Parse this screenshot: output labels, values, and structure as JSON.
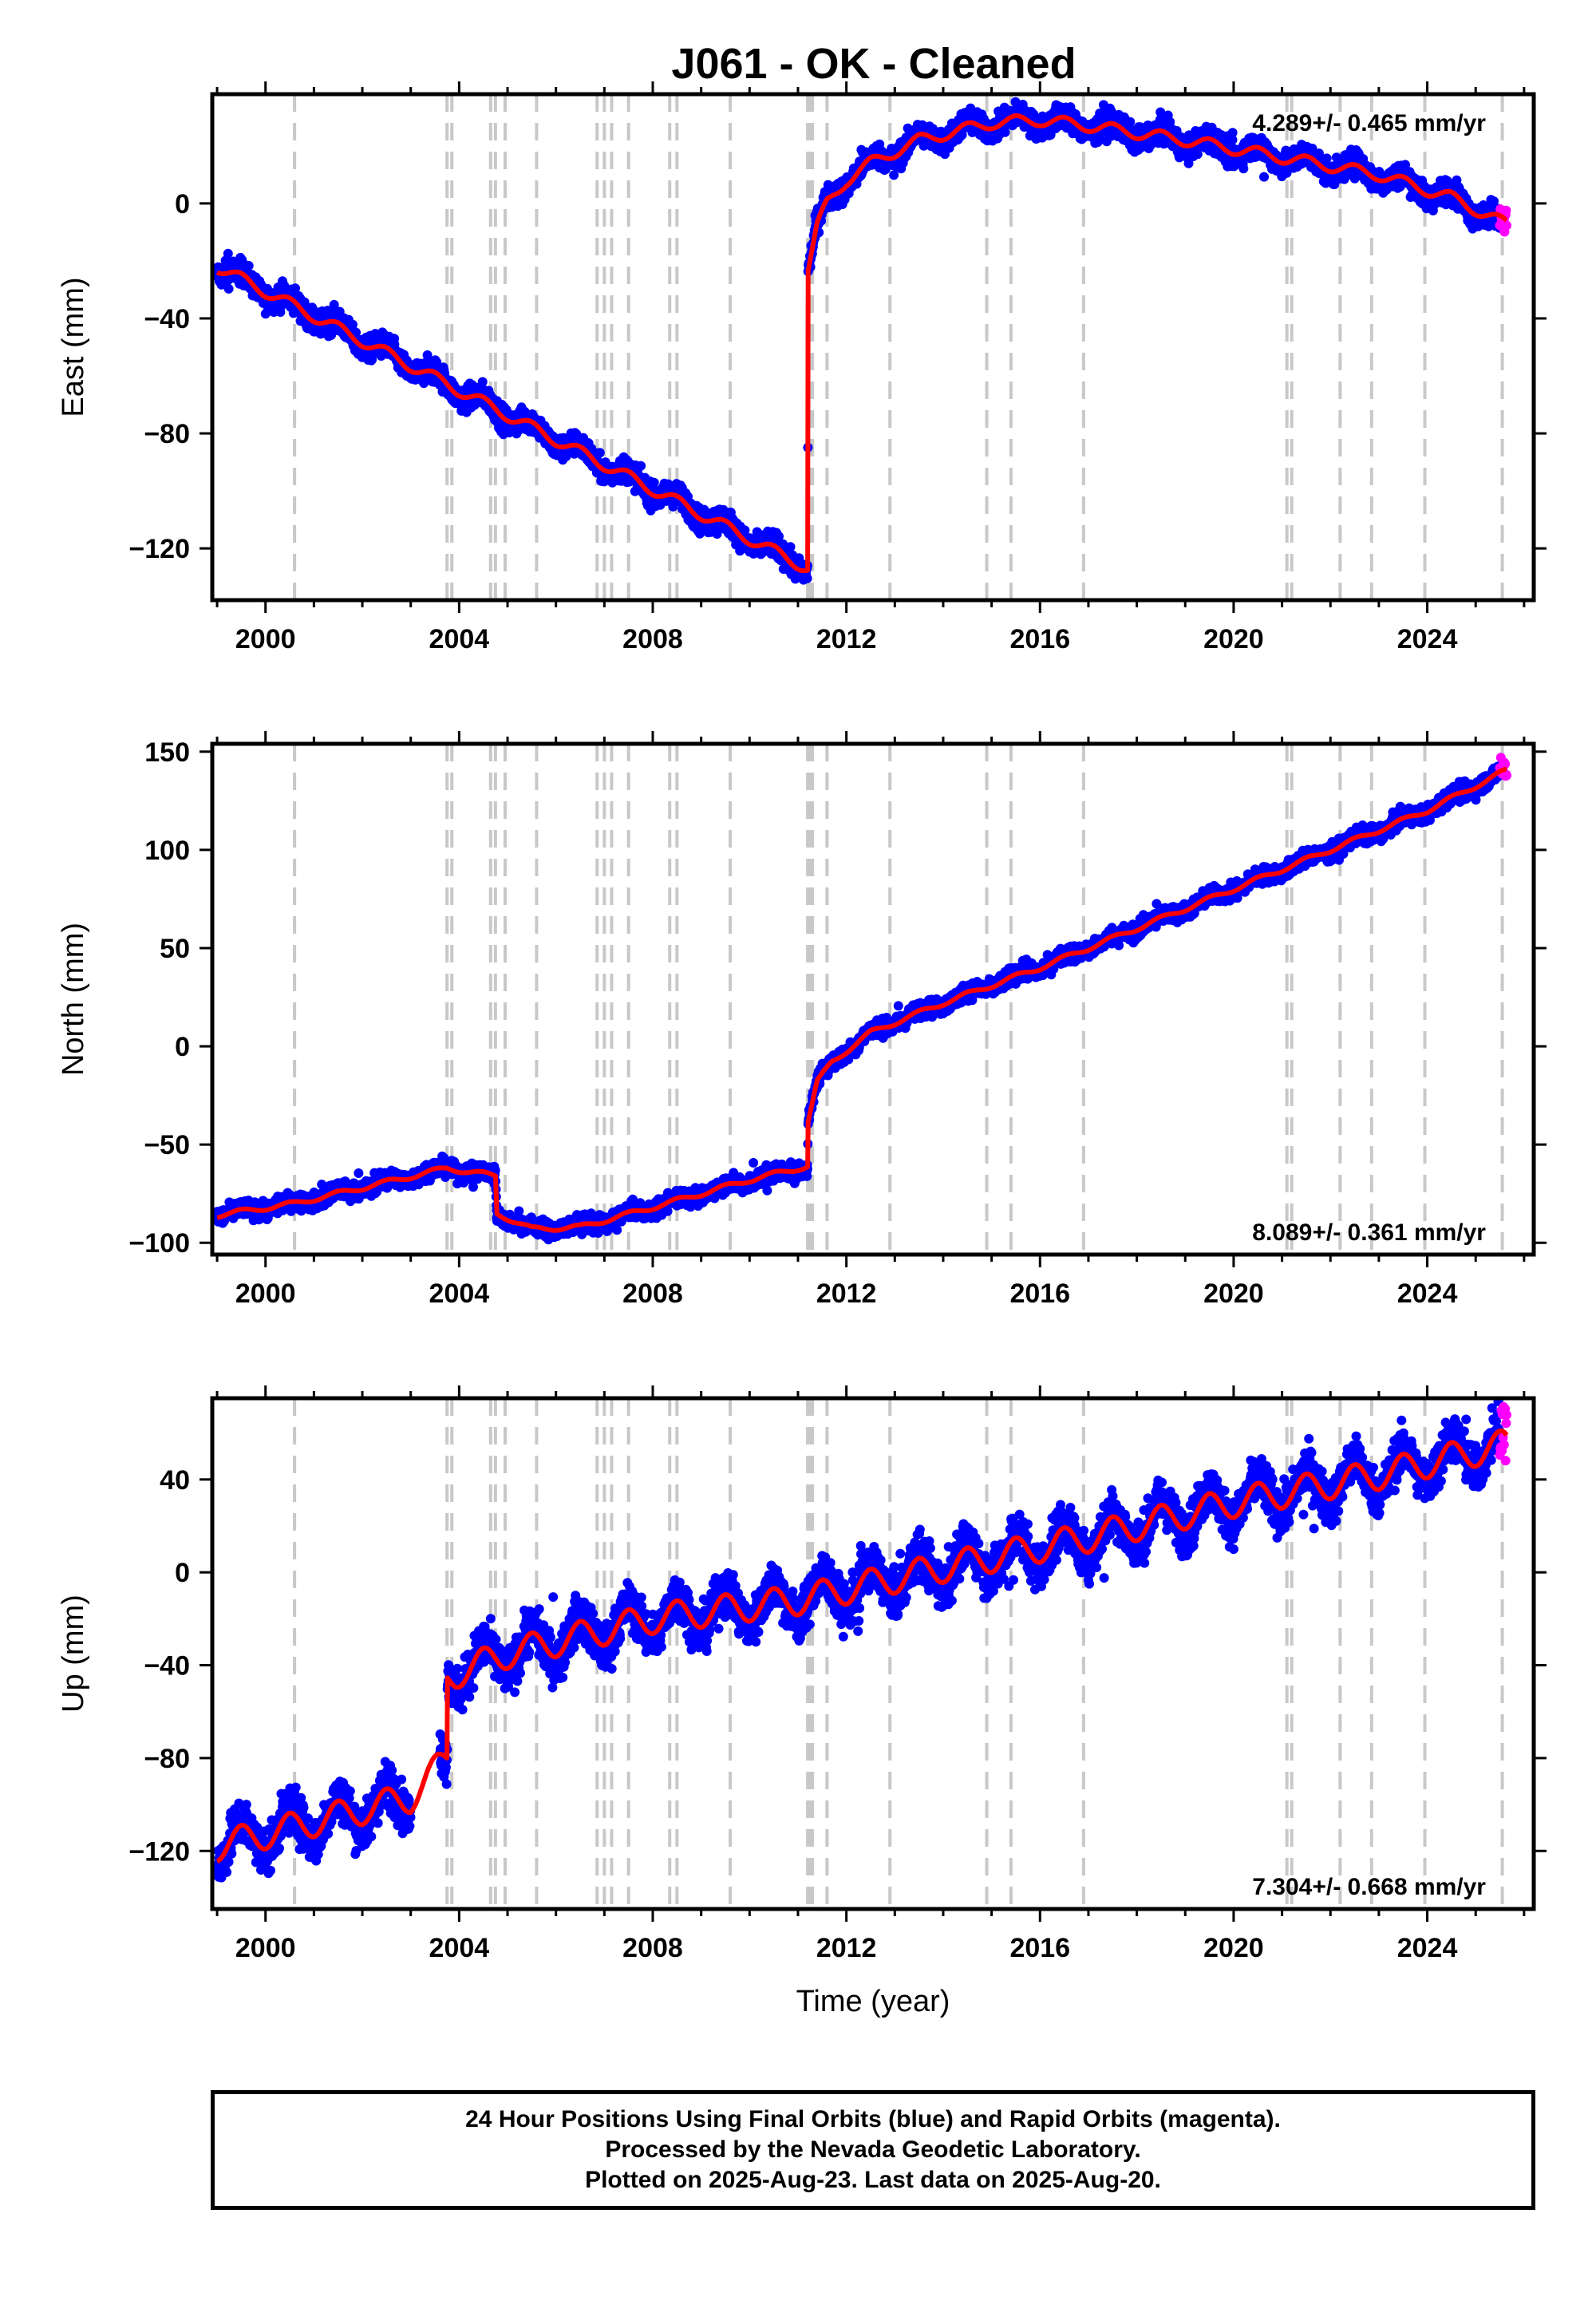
{
  "title": "J061  - OK - Cleaned",
  "colors": {
    "final_orbits": "#0000ff",
    "rapid_orbits": "#ff00ff",
    "model_fit": "#ff0000",
    "event_lines": "#c8c8c8",
    "frame": "#000000"
  },
  "footer": {
    "line1": "24 Hour Positions Using Final Orbits (blue) and Rapid Orbits (magenta).",
    "line2": "Processed by the Nevada Geodetic Laboratory.",
    "line3": "Plotted on 2025-Aug-23. Last data on 2025-Aug-20."
  },
  "chart_data": [
    {
      "type": "scatter",
      "title": "J061  - OK - Cleaned",
      "xlabel": "",
      "ylabel": "East (mm)",
      "xlim": [
        1998.9,
        2026.2
      ],
      "ylim": [
        -138,
        38
      ],
      "xticks": [
        2000,
        2004,
        2008,
        2012,
        2016,
        2020,
        2024
      ],
      "yticks": [
        -120,
        -80,
        -40,
        0
      ],
      "grid": false,
      "rate_annotation": "4.289+/- 0.465 mm/yr",
      "rate_position": "top-right",
      "event_lines": [
        2000.6,
        2003.75,
        2003.85,
        2004.65,
        2004.75,
        2004.95,
        2005.6,
        2006.85,
        2007.0,
        2007.15,
        2007.5,
        2008.35,
        2008.5,
        2009.6,
        2011.2,
        2011.25,
        2011.3,
        2011.6,
        2012.9,
        2014.9,
        2015.4,
        2016.9,
        2021.1,
        2021.2,
        2022.2,
        2022.85,
        2023.95,
        2025.55
      ],
      "series": [
        {
          "name": "Final Orbits",
          "color": "#0000ff",
          "trend": [
            [
              1999.0,
              -22
            ],
            [
              2011.2,
              -127
            ],
            [
              2011.21,
              -23
            ],
            [
              2011.4,
              -8
            ],
            [
              2011.6,
              0
            ],
            [
              2012.0,
              8
            ],
            [
              2012.5,
              14
            ],
            [
              2013.5,
              22
            ],
            [
              2015.0,
              28
            ],
            [
              2016.0,
              29
            ],
            [
              2017.0,
              27
            ],
            [
              2019.0,
              22
            ],
            [
              2021.0,
              16
            ],
            [
              2023.0,
              10
            ],
            [
              2024.5,
              2
            ],
            [
              2025.6,
              -7
            ]
          ],
          "seasonal_amplitude": 2.5,
          "scatter": 3
        },
        {
          "name": "Rapid Orbits",
          "color": "#ff00ff",
          "x_range": [
            2025.5,
            2025.64
          ],
          "y_range": [
            -10,
            -2
          ]
        },
        {
          "name": "Model",
          "color": "#ff0000",
          "type": "line"
        }
      ]
    },
    {
      "type": "scatter",
      "xlabel": "",
      "ylabel": "North (mm)",
      "xlim": [
        1998.9,
        2026.2
      ],
      "ylim": [
        -106,
        154
      ],
      "xticks": [
        2000,
        2004,
        2008,
        2012,
        2016,
        2020,
        2024
      ],
      "yticks": [
        -100,
        -50,
        0,
        50,
        100,
        150
      ],
      "grid": false,
      "rate_annotation": "8.089+/- 0.361 mm/yr",
      "rate_position": "bottom-right",
      "event_lines": [
        2000.6,
        2003.75,
        2003.85,
        2004.65,
        2004.75,
        2004.95,
        2005.6,
        2006.85,
        2007.0,
        2007.15,
        2007.5,
        2008.35,
        2008.5,
        2009.6,
        2011.2,
        2011.25,
        2011.3,
        2011.6,
        2012.9,
        2014.9,
        2015.4,
        2016.9,
        2021.1,
        2021.2,
        2022.2,
        2022.85,
        2023.95,
        2025.55
      ],
      "series": [
        {
          "name": "Final Orbits",
          "color": "#0000ff",
          "trend": [
            [
              1999.0,
              -86
            ],
            [
              2000.6,
              -80
            ],
            [
              2003.75,
              -62
            ],
            [
              2004.75,
              -66
            ],
            [
              2004.78,
              -85
            ],
            [
              2005.5,
              -93
            ],
            [
              2006.5,
              -92
            ],
            [
              2008.0,
              -82
            ],
            [
              2010.0,
              -68
            ],
            [
              2011.2,
              -61
            ],
            [
              2011.21,
              -38
            ],
            [
              2011.4,
              -18
            ],
            [
              2011.7,
              -8
            ],
            [
              2012.5,
              7
            ],
            [
              2014.0,
              22
            ],
            [
              2016.0,
              40
            ],
            [
              2018.0,
              60
            ],
            [
              2020.0,
              80
            ],
            [
              2022.0,
              100
            ],
            [
              2024.0,
              120
            ],
            [
              2025.6,
              140
            ]
          ],
          "seasonal_amplitude": 1.5,
          "scatter": 3
        },
        {
          "name": "Rapid Orbits",
          "color": "#ff00ff",
          "x_range": [
            2025.5,
            2025.64
          ],
          "y_range": [
            137,
            148
          ]
        },
        {
          "name": "Model",
          "color": "#ff0000",
          "type": "line"
        }
      ]
    },
    {
      "type": "scatter",
      "xlabel": "Time (year)",
      "ylabel": "Up (mm)",
      "xlim": [
        1998.9,
        2026.2
      ],
      "ylim": [
        -145,
        75
      ],
      "xticks": [
        2000,
        2004,
        2008,
        2012,
        2016,
        2020,
        2024
      ],
      "yticks": [
        -120,
        -80,
        -40,
        0,
        40
      ],
      "grid": false,
      "rate_annotation": "7.304+/- 0.668 mm/yr",
      "rate_position": "bottom-right",
      "event_lines": [
        2000.6,
        2003.75,
        2003.85,
        2004.65,
        2004.75,
        2004.95,
        2005.6,
        2006.85,
        2007.0,
        2007.15,
        2007.5,
        2008.35,
        2008.5,
        2009.6,
        2011.2,
        2011.25,
        2011.3,
        2011.6,
        2012.9,
        2014.9,
        2015.4,
        2016.9,
        2021.1,
        2021.2,
        2022.2,
        2022.85,
        2023.95,
        2025.55
      ],
      "data_gap": [
        2003.0,
        2003.6
      ],
      "series": [
        {
          "name": "Final Orbits",
          "color": "#0000ff",
          "trend": [
            [
              1999.0,
              -118
            ],
            [
              2003.0,
              -97
            ],
            [
              2003.75,
              -80
            ],
            [
              2003.76,
              -45
            ],
            [
              2005.0,
              -35
            ],
            [
              2008.0,
              -20
            ],
            [
              2011.0,
              -12
            ],
            [
              2014.0,
              2
            ],
            [
              2017.0,
              15
            ],
            [
              2020.0,
              30
            ],
            [
              2023.0,
              42
            ],
            [
              2025.6,
              55
            ]
          ],
          "seasonal_amplitude": 8,
          "scatter": 7
        },
        {
          "name": "Rapid Orbits",
          "color": "#ff00ff",
          "x_range": [
            2025.5,
            2025.64
          ],
          "y_range": [
            48,
            72
          ]
        },
        {
          "name": "Model",
          "color": "#ff0000",
          "type": "line"
        }
      ]
    }
  ]
}
